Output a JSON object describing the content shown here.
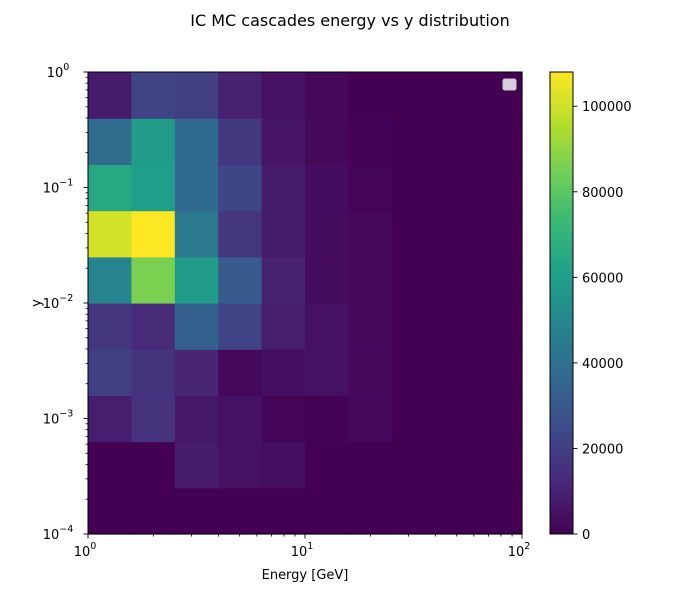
{
  "chart_data": {
    "type": "heatmap",
    "title": "IC MC cascades energy vs y distribution",
    "xlabel": "Energy [GeV]",
    "ylabel": "y",
    "x_scale": "log",
    "y_scale": "log",
    "xlim": [
      1,
      100
    ],
    "ylim": [
      0.0001,
      1
    ],
    "x_edges": [
      1,
      1.585,
      2.512,
      3.981,
      6.31,
      10,
      15.85,
      25.12,
      39.81,
      63.1,
      100
    ],
    "y_edges": [
      0.0001,
      0.0002512,
      0.000631,
      0.001585,
      0.003981,
      0.01,
      0.02512,
      0.0631,
      0.1585,
      0.3981,
      1
    ],
    "x_ticks": [
      {
        "value": 1,
        "base": "10",
        "exp": "0"
      },
      {
        "value": 10,
        "base": "10",
        "exp": "1"
      },
      {
        "value": 100,
        "base": "10",
        "exp": "2"
      }
    ],
    "y_ticks": [
      {
        "value": 0.0001,
        "base": "10",
        "exp": "−4"
      },
      {
        "value": 0.001,
        "base": "10",
        "exp": "−3"
      },
      {
        "value": 0.01,
        "base": "10",
        "exp": "−2"
      },
      {
        "value": 0.1,
        "base": "10",
        "exp": "−1"
      },
      {
        "value": 1,
        "base": "10",
        "exp": "0"
      }
    ],
    "counts": [
      [
        0,
        0,
        0,
        0,
        0,
        0,
        0,
        0,
        0,
        0
      ],
      [
        0,
        0,
        8000,
        5000,
        4000,
        0,
        0,
        0,
        0,
        0
      ],
      [
        9000,
        16000,
        7000,
        5000,
        1000,
        500,
        2000,
        0,
        0,
        0
      ],
      [
        20000,
        16000,
        11000,
        2000,
        4000,
        5000,
        2500,
        0,
        0,
        0
      ],
      [
        17000,
        13000,
        33000,
        22000,
        9000,
        5000,
        2500,
        0,
        0,
        0
      ],
      [
        49000,
        86000,
        59000,
        31000,
        10000,
        3000,
        2000,
        0,
        0,
        0
      ],
      [
        101000,
        108000,
        44000,
        17000,
        8000,
        3000,
        2000,
        0,
        0,
        0
      ],
      [
        65000,
        60000,
        37000,
        23000,
        8000,
        3500,
        1000,
        0,
        0,
        0
      ],
      [
        38000,
        59000,
        37000,
        18000,
        6000,
        2500,
        500,
        0,
        0,
        0
      ],
      [
        8000,
        22000,
        20000,
        10000,
        5000,
        2000,
        0,
        0,
        0,
        0
      ]
    ],
    "colorbar": {
      "min": 0,
      "max": 108000,
      "ticks": [
        0,
        20000,
        40000,
        60000,
        80000,
        100000
      ],
      "tick_labels": [
        "0",
        "20000",
        "40000",
        "60000",
        "80000",
        "100000"
      ]
    },
    "colormap": [
      "#440154",
      "#482878",
      "#3e4989",
      "#31688e",
      "#26828e",
      "#1f9e89",
      "#35b779",
      "#6ece58",
      "#b5de2b",
      "#fde725"
    ],
    "legend": {
      "placement": "upper right",
      "entries": []
    }
  }
}
